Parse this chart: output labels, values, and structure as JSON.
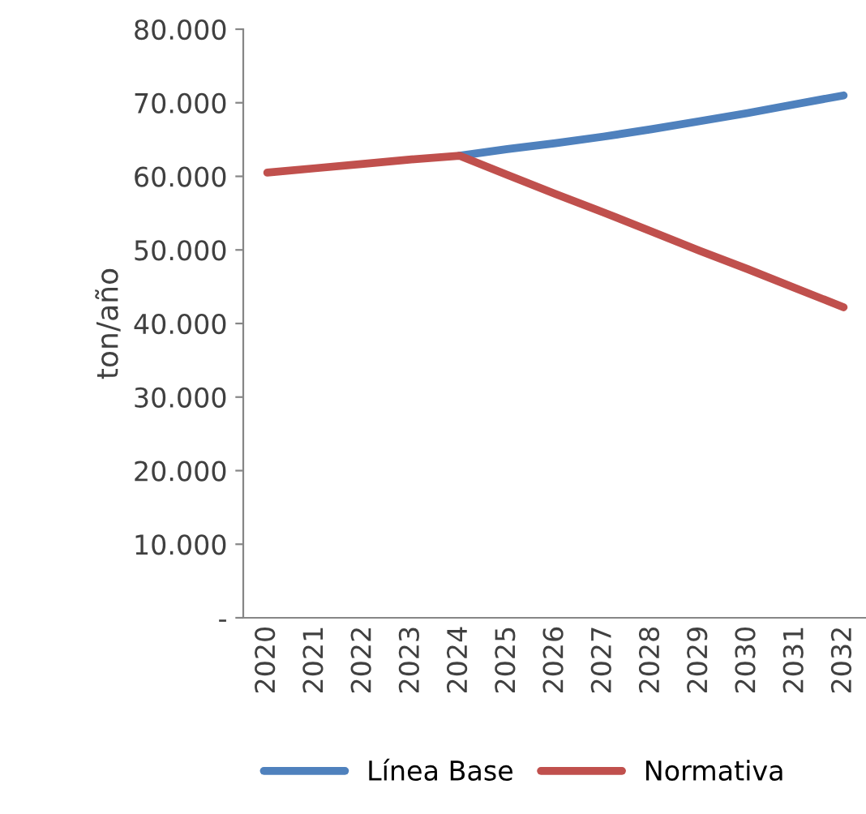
{
  "chart_data": {
    "type": "line",
    "ylabel": "ton/año",
    "categories": [
      "2020",
      "2021",
      "2022",
      "2023",
      "2024",
      "2025",
      "2026",
      "2027",
      "2028",
      "2029",
      "2030",
      "2031",
      "2032"
    ],
    "series": [
      {
        "name": "Línea Base",
        "color": "#4f81bd",
        "values": [
          null,
          null,
          null,
          null,
          62800,
          63700,
          64500,
          65400,
          66400,
          67500,
          68600,
          69800,
          71000
        ]
      },
      {
        "name": "Normativa",
        "color": "#c0504d",
        "values": [
          60500,
          61100,
          61700,
          62300,
          62800,
          60200,
          57600,
          55100,
          52500,
          49900,
          47400,
          44800,
          42200
        ]
      }
    ],
    "ylim": [
      0,
      80000
    ],
    "yticks": [
      {
        "value": 0,
        "label": "-"
      },
      {
        "value": 10000,
        "label": "10.000"
      },
      {
        "value": 20000,
        "label": "20.000"
      },
      {
        "value": 30000,
        "label": "30.000"
      },
      {
        "value": 40000,
        "label": "40.000"
      },
      {
        "value": 50000,
        "label": "50.000"
      },
      {
        "value": 60000,
        "label": "60.000"
      },
      {
        "value": 70000,
        "label": "70.000"
      },
      {
        "value": 80000,
        "label": "80.000"
      }
    ],
    "grid": false,
    "legend": "bottom",
    "marker": "none",
    "line_style": "solid"
  }
}
